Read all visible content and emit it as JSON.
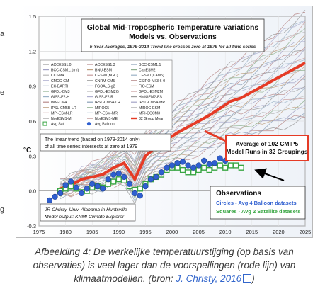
{
  "page": {
    "edge_fragments": [
      {
        "text": "a"
      },
      {
        "text": "e"
      },
      {
        "text": "g"
      }
    ]
  },
  "chart_data": {
    "type": "line",
    "title": "Global Mid-Tropospheric Temperature Variations",
    "subtitle": "Models vs. Observations",
    "note": "5-Year Averages, 1979-2014 Trend line crosses zero at 1979 for all time series",
    "ylabel": "°C",
    "xlim": [
      1975,
      2025
    ],
    "ylim": [
      -0.3,
      1.5
    ],
    "x_ticks": [
      "1975",
      "1980",
      "1985",
      "1990",
      "1995",
      "2000",
      "2005",
      "2010",
      "2015",
      "2020",
      "2025"
    ],
    "y_ticks": [
      "-0.3",
      "0.0",
      "0.3",
      "0.6",
      "0.9",
      "1.2",
      "1.5"
    ],
    "legend_models": [
      "ACCESS1.0",
      "ACCESS1.3",
      "BCC-CSM1.1",
      "BCC-CSM1.1(m)",
      "BNU-ESM",
      "CanESM2",
      "CCSM4",
      "CESM1(BGC)",
      "CESM1(CAM5)",
      "CMCC-CM",
      "CNRM-CM5",
      "CSIRO-Mk3-6-0",
      "EC-EARTH",
      "FGOALS-g2",
      "FIO-ESM",
      "GFDL-CM3",
      "GFDL-ESM2G",
      "GFDL-ESM2M",
      "GISS-E2-H",
      "GISS-E2-R",
      "HadGEM2-ES",
      "INM-CM4",
      "IPSL-CM5A-LR",
      "IPSL-CM5A-MR",
      "IPSL-CM5B-LR",
      "MIROC5",
      "MIROC-ESM",
      "MPI-ESM-LR",
      "MPI-ESM-MR",
      "MRI-CGCM3",
      "NorESM1-M",
      "NorESM1-ME",
      "32 Group Mean",
      "Avg Sat",
      "Avg Balloon"
    ],
    "trend_note": "The linear trend (based on 1979-2014 only) of all time series intersects at zero at 1979",
    "model_callout": "Average of 102 CMIP5 Model Runs in 32 Groupings",
    "obs_title": "Observations",
    "obs_circles": "Circles - Avg 4 Balloon datasets",
    "obs_squares": "Squares - Avg 2 Satellite datasets",
    "credit_1": "JR Christy, Univ. Alabama in Huntsville",
    "credit_2": "Model output: KNMI Climate Explorer",
    "series": [
      {
        "name": "32 Group Mean",
        "color": "#e53b26",
        "x": [
          1979,
          1981,
          1983,
          1985,
          1987,
          1989,
          1991,
          1993,
          1995,
          1997,
          1999,
          2001,
          2003,
          2005,
          2007,
          2009,
          2011,
          2013,
          2015,
          2017,
          2019,
          2021,
          2023,
          2025
        ],
        "y": [
          0.02,
          0.05,
          0.1,
          0.12,
          0.14,
          0.2,
          0.24,
          0.1,
          0.3,
          0.38,
          0.44,
          0.5,
          0.55,
          0.6,
          0.65,
          0.71,
          0.77,
          0.8,
          0.85,
          0.9,
          0.95,
          1.0,
          1.05,
          1.1
        ]
      },
      {
        "name": "Avg Balloon",
        "color": "#2f5fd0",
        "x": [
          1977,
          1978,
          1979,
          1980,
          1981,
          1982,
          1983,
          1984,
          1985,
          1986,
          1987,
          1988,
          1989,
          1990,
          1991,
          1992,
          1993,
          1994,
          1995,
          1996,
          1997,
          1998,
          1999,
          2000,
          2001,
          2002,
          2003,
          2004,
          2005,
          2006,
          2007,
          2008,
          2009,
          2010,
          2011,
          2012,
          2013
        ],
        "y": [
          -0.08,
          -0.05,
          -0.02,
          0.05,
          0.08,
          0.03,
          -0.02,
          0.02,
          0.06,
          0.04,
          0.02,
          0.1,
          0.14,
          0.15,
          0.12,
          0.06,
          -0.02,
          -0.04,
          0.04,
          0.1,
          0.12,
          0.16,
          0.2,
          0.22,
          0.24,
          0.25,
          0.22,
          0.2,
          0.22,
          0.26,
          0.23,
          0.24,
          0.28,
          0.26,
          0.3,
          0.3,
          0.28
        ]
      },
      {
        "name": "Avg Sat",
        "color": "#3aa644",
        "x": [
          1979,
          1980,
          1981,
          1982,
          1983,
          1984,
          1985,
          1986,
          1987,
          1988,
          1989,
          1990,
          1991,
          1992,
          1993,
          1994,
          1995,
          1996,
          1997,
          1998,
          1999,
          2000,
          2001,
          2002,
          2003,
          2004,
          2005,
          2006,
          2007,
          2008,
          2009,
          2010,
          2011,
          2012,
          2013
        ],
        "y": [
          0.0,
          0.02,
          0.04,
          0.02,
          -0.01,
          0.0,
          0.03,
          0.04,
          0.03,
          0.06,
          0.08,
          0.1,
          0.09,
          0.04,
          0.01,
          0.02,
          0.06,
          0.1,
          0.12,
          0.14,
          0.18,
          0.2,
          0.2,
          0.18,
          0.16,
          0.16,
          0.18,
          0.2,
          0.18,
          0.2,
          0.22,
          0.2,
          0.22,
          0.22,
          0.2
        ]
      }
    ]
  },
  "caption": {
    "text": "Afbeelding 4: De werkelijke temperatuurstijging (op basis van observaties) is veel lager dan de voorspellingen (rode lijn) van klimaatmodellen. (bron: ",
    "link_label": "J. Christy, 2016",
    "tail": ")"
  }
}
